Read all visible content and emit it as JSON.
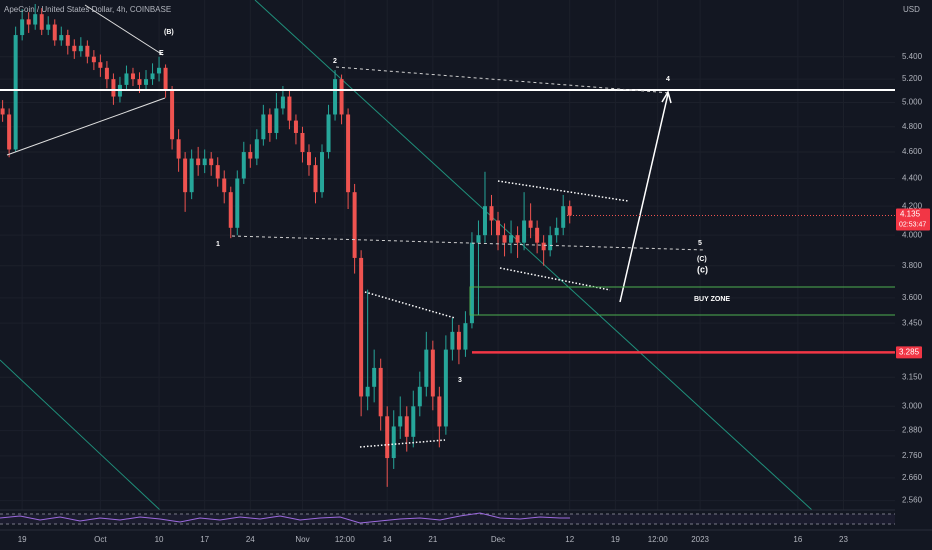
{
  "chart_data": {
    "type": "candlestick",
    "title": "ApeCoin / United States Dollar, 4h, COINBASE",
    "currency": "USD",
    "log_scale": true,
    "up_color": "#26a69a",
    "down_color": "#ef5350",
    "xlim": [
      -3.4,
      133.9
    ],
    "ylim": [
      2.52,
      5.94
    ],
    "xticks": [
      {
        "value": 0,
        "label": "19"
      },
      {
        "value": 12,
        "label": "Oct"
      },
      {
        "value": 21,
        "label": "10"
      },
      {
        "value": 28,
        "label": "17"
      },
      {
        "value": 35,
        "label": "24"
      },
      {
        "value": 43,
        "label": "Nov"
      },
      {
        "value": 49.5,
        "label": "12:00"
      },
      {
        "value": 56,
        "label": "14"
      },
      {
        "value": 63,
        "label": "21"
      },
      {
        "value": 73,
        "label": "Dec"
      },
      {
        "value": 84,
        "label": "12"
      },
      {
        "value": 91,
        "label": "19"
      },
      {
        "value": 97.5,
        "label": "12:00"
      },
      {
        "value": 104,
        "label": "2023"
      },
      {
        "value": 119,
        "label": "16"
      },
      {
        "value": 126,
        "label": "23"
      }
    ],
    "yticks": [
      {
        "value": 5.4,
        "label": "5.400"
      },
      {
        "value": 5.2,
        "label": "5.200"
      },
      {
        "value": 5.0,
        "label": "5.000"
      },
      {
        "value": 4.8,
        "label": "4.800"
      },
      {
        "value": 4.6,
        "label": "4.600"
      },
      {
        "value": 4.4,
        "label": "4.400"
      },
      {
        "value": 4.2,
        "label": "4.200"
      },
      {
        "value": 4.0,
        "label": "4.000"
      },
      {
        "value": 3.8,
        "label": "3.800"
      },
      {
        "value": 3.6,
        "label": "3.600"
      },
      {
        "value": 3.45,
        "label": "3.450"
      },
      {
        "value": 3.15,
        "label": "3.150"
      },
      {
        "value": 3.0,
        "label": "3.000"
      },
      {
        "value": 2.88,
        "label": "2.880"
      },
      {
        "value": 2.76,
        "label": "2.760"
      },
      {
        "value": 2.66,
        "label": "2.660"
      },
      {
        "value": 2.56,
        "label": "2.560"
      }
    ],
    "last_price": 4.135,
    "countdown": "02:53:47",
    "level": 3.285,
    "annotations": [
      "(B)",
      "E",
      "1",
      "2",
      "3",
      "4",
      "5",
      "(C)",
      "(c)",
      "BUY ZONE"
    ],
    "x": [
      -3,
      -2,
      -1,
      0,
      1,
      2,
      3,
      4,
      5,
      6,
      7,
      8,
      9,
      10,
      11,
      12,
      13,
      14,
      15,
      16,
      17,
      18,
      19,
      20,
      21,
      22,
      23,
      24,
      25,
      26,
      27,
      28,
      29,
      30,
      31,
      32,
      33,
      34,
      35,
      36,
      37,
      38,
      39,
      40,
      41,
      42,
      43,
      44,
      45,
      46,
      47,
      48,
      49,
      50,
      51,
      52,
      53,
      54,
      55,
      56,
      57,
      58,
      59,
      60,
      61,
      62,
      63,
      64,
      65,
      66,
      67,
      68,
      69,
      70,
      71,
      72,
      73,
      74,
      75,
      76,
      77,
      78,
      79,
      80,
      81,
      82,
      83,
      84
    ],
    "open": [
      4.95,
      4.9,
      4.62,
      5.6,
      5.75,
      5.7,
      5.8,
      5.65,
      5.7,
      5.55,
      5.6,
      5.5,
      5.45,
      5.5,
      5.4,
      5.35,
      5.3,
      5.2,
      5.05,
      5.15,
      5.25,
      5.2,
      5.15,
      5.2,
      5.25,
      5.3,
      5.1,
      4.7,
      4.55,
      4.3,
      4.55,
      4.5,
      4.55,
      4.5,
      4.4,
      4.3,
      4.05,
      4.4,
      4.6,
      4.55,
      4.7,
      4.9,
      4.75,
      4.95,
      5.05,
      4.85,
      4.75,
      4.6,
      4.5,
      4.3,
      4.6,
      4.9,
      5.2,
      4.9,
      4.3,
      3.85,
      3.05,
      3.1,
      3.2,
      2.95,
      2.75,
      2.9,
      2.95,
      2.85,
      3.0,
      3.1,
      3.3,
      3.05,
      2.9,
      3.3,
      3.4,
      3.3,
      3.45,
      3.95,
      4.0,
      4.2,
      4.1,
      4.0,
      3.95,
      4.0,
      3.95,
      4.1,
      4.05,
      3.95,
      3.9,
      4.0,
      4.05,
      4.2
    ],
    "high": [
      5.02,
      4.95,
      5.68,
      5.85,
      5.82,
      5.9,
      5.86,
      5.78,
      5.75,
      5.68,
      5.65,
      5.56,
      5.58,
      5.55,
      5.46,
      5.42,
      5.36,
      5.25,
      5.22,
      5.32,
      5.3,
      5.26,
      5.28,
      5.34,
      5.4,
      5.33,
      5.14,
      4.78,
      4.6,
      4.62,
      4.64,
      4.62,
      4.6,
      4.56,
      4.46,
      4.34,
      4.46,
      4.68,
      4.66,
      4.78,
      4.98,
      4.95,
      5.08,
      5.14,
      5.1,
      4.9,
      4.8,
      4.66,
      4.56,
      4.66,
      4.98,
      5.28,
      5.24,
      4.95,
      4.36,
      3.9,
      3.65,
      3.3,
      3.25,
      3.0,
      2.98,
      3.05,
      3.0,
      3.08,
      3.18,
      3.4,
      3.35,
      3.1,
      3.38,
      3.48,
      3.44,
      3.52,
      4.02,
      4.1,
      4.45,
      4.28,
      4.16,
      4.08,
      4.1,
      4.06,
      4.3,
      4.22,
      4.1,
      4.0,
      4.06,
      4.12,
      4.28,
      4.24
    ],
    "low": [
      4.84,
      4.56,
      4.6,
      5.55,
      5.62,
      5.65,
      5.6,
      5.6,
      5.5,
      5.5,
      5.42,
      5.38,
      5.4,
      5.34,
      5.28,
      5.22,
      5.12,
      4.98,
      5.0,
      5.1,
      5.14,
      5.08,
      5.1,
      5.15,
      5.18,
      5.04,
      4.62,
      4.45,
      4.16,
      4.25,
      4.42,
      4.44,
      4.42,
      4.34,
      4.22,
      3.98,
      4.0,
      4.36,
      4.48,
      4.5,
      4.65,
      4.68,
      4.7,
      4.9,
      4.78,
      4.66,
      4.52,
      4.42,
      4.22,
      4.26,
      4.55,
      4.85,
      4.82,
      4.18,
      3.75,
      2.95,
      2.98,
      3.02,
      2.88,
      2.62,
      2.7,
      2.84,
      2.78,
      2.8,
      2.95,
      3.05,
      2.98,
      2.8,
      2.86,
      3.24,
      3.22,
      3.26,
      3.42,
      3.5,
      3.95,
      4.0,
      3.9,
      3.86,
      3.88,
      3.85,
      3.9,
      3.98,
      3.88,
      3.8,
      3.86,
      3.95,
      4.0,
      4.08
    ],
    "close": [
      4.9,
      4.62,
      5.6,
      5.75,
      5.7,
      5.8,
      5.65,
      5.7,
      5.55,
      5.6,
      5.5,
      5.45,
      5.5,
      5.4,
      5.35,
      5.3,
      5.2,
      5.05,
      5.15,
      5.25,
      5.2,
      5.15,
      5.2,
      5.25,
      5.3,
      5.1,
      4.7,
      4.55,
      4.3,
      4.55,
      4.5,
      4.55,
      4.5,
      4.4,
      4.3,
      4.05,
      4.4,
      4.6,
      4.55,
      4.7,
      4.9,
      4.75,
      4.95,
      5.05,
      4.85,
      4.75,
      4.6,
      4.5,
      4.3,
      4.6,
      4.9,
      5.2,
      4.9,
      4.3,
      3.85,
      3.05,
      3.1,
      3.2,
      2.95,
      2.75,
      2.9,
      2.95,
      2.85,
      3.0,
      3.1,
      3.3,
      3.05,
      2.9,
      3.3,
      3.4,
      3.3,
      3.45,
      3.95,
      4.0,
      4.2,
      4.1,
      4.0,
      3.95,
      4.0,
      3.95,
      4.1,
      4.05,
      3.95,
      3.9,
      4.0,
      4.05,
      4.2,
      4.135
    ]
  }
}
